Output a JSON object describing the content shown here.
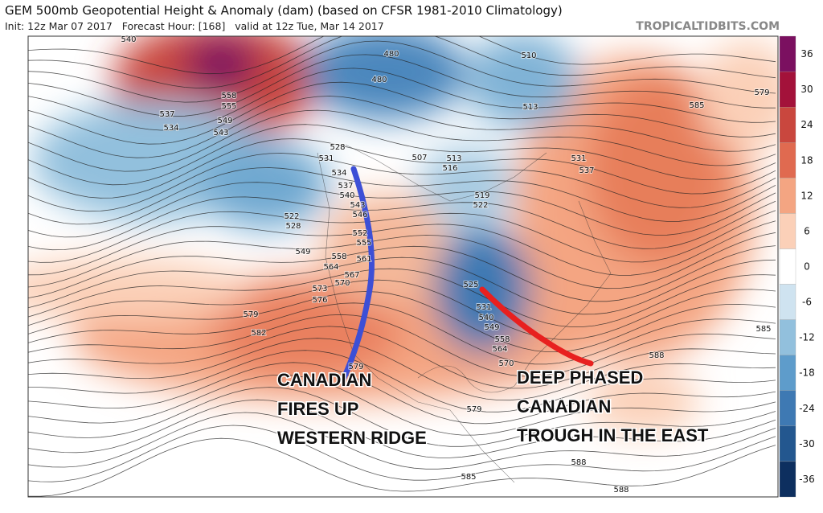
{
  "header": {
    "title": "GEM 500mb Geopotential Height & Anomaly (dam) (based on CFSR 1981-2010 Climatology)",
    "subtitle": "Init: 12z Mar 07 2017   Forecast Hour: [168]   valid at 12z Tue, Mar 14 2017",
    "watermark": "TROPICALTIDBITS.COM"
  },
  "colorbar": {
    "ticks": [
      36,
      30,
      24,
      18,
      12,
      6,
      0,
      -6,
      -12,
      -18,
      -24,
      -30,
      -36
    ]
  },
  "map": {
    "contour_labels": [
      540,
      537,
      534,
      543,
      549,
      555,
      558,
      480,
      480,
      510,
      513,
      528,
      531,
      534,
      537,
      540,
      543,
      546,
      552,
      555,
      561,
      558,
      564,
      567,
      570,
      573,
      576,
      579,
      582,
      549,
      522,
      528,
      531,
      537,
      519,
      522,
      525,
      531,
      540,
      549,
      558,
      564,
      570,
      579,
      585,
      588,
      588,
      588,
      585,
      585,
      579,
      579,
      516,
      513,
      507
    ],
    "annotations": [
      [
        "CANADIAN",
        "FIRES UP",
        "WESTERN RIDGE"
      ],
      [
        "DEEP PHASED",
        "CANADIAN",
        "TROUGH IN  THE EAST"
      ]
    ]
  }
}
